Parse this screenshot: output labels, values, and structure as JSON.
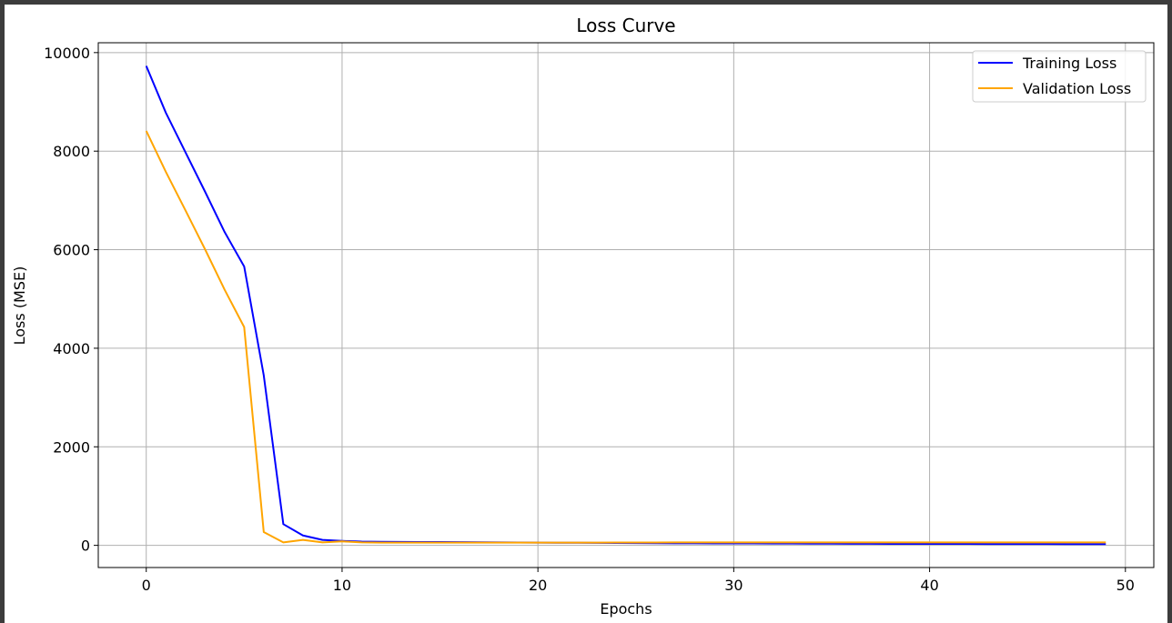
{
  "chart_data": {
    "type": "line",
    "title": "Loss Curve",
    "xlabel": "Epochs",
    "ylabel": "Loss (MSE)",
    "xlim": [
      -2.45,
      51.45
    ],
    "ylim": [
      -450,
      10200
    ],
    "xticks": [
      0,
      10,
      20,
      30,
      40,
      50
    ],
    "yticks": [
      0,
      2000,
      4000,
      6000,
      8000,
      10000
    ],
    "grid": true,
    "legend_position": "top-right",
    "x": [
      0,
      1,
      2,
      3,
      4,
      5,
      6,
      7,
      8,
      9,
      10,
      11,
      12,
      13,
      14,
      15,
      16,
      17,
      18,
      19,
      20,
      21,
      22,
      23,
      24,
      25,
      26,
      27,
      28,
      29,
      30,
      31,
      32,
      33,
      34,
      35,
      36,
      37,
      38,
      39,
      40,
      41,
      42,
      43,
      44,
      45,
      46,
      47,
      48,
      49
    ],
    "series": [
      {
        "name": "Training Loss",
        "color": "#0000ff",
        "values": [
          9730,
          8780,
          7980,
          7180,
          6360,
          5660,
          3450,
          430,
          200,
          110,
          90,
          75,
          72,
          70,
          68,
          66,
          64,
          62,
          60,
          58,
          56,
          54,
          52,
          50,
          48,
          46,
          44,
          42,
          41,
          40,
          39,
          38,
          37,
          36,
          35,
          34,
          33,
          32,
          31,
          30,
          30,
          29,
          29,
          28,
          28,
          27,
          27,
          26,
          26,
          25
        ]
      },
      {
        "name": "Validation Loss",
        "color": "#ffa500",
        "values": [
          8410,
          7580,
          6800,
          6010,
          5190,
          4430,
          270,
          60,
          110,
          60,
          80,
          60,
          55,
          55,
          55,
          55,
          55,
          55,
          55,
          55,
          55,
          55,
          56,
          56,
          57,
          58,
          58,
          59,
          59,
          60,
          60,
          60,
          60,
          60,
          60,
          60,
          60,
          60,
          60,
          60,
          60,
          60,
          60,
          60,
          60,
          60,
          60,
          60,
          60,
          60
        ]
      }
    ]
  }
}
